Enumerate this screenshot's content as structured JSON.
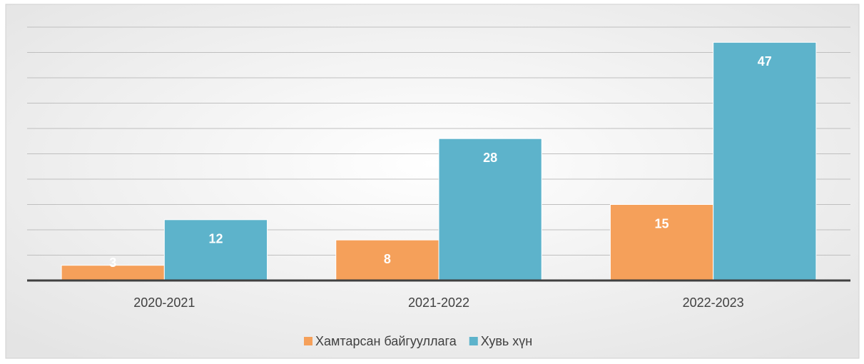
{
  "chart_data": {
    "type": "bar",
    "categories": [
      "2020-2021",
      "2021-2022",
      "2022-2023"
    ],
    "series": [
      {
        "name": "Хамтарсан байгууллага",
        "color": "#f5a05a",
        "values": [
          3,
          8,
          15
        ]
      },
      {
        "name": "Хувь хүн",
        "color": "#5db3cb",
        "values": [
          12,
          28,
          47
        ]
      }
    ],
    "ylim": [
      0,
      50
    ],
    "yticks": [
      0,
      5,
      10,
      15,
      20,
      25,
      30,
      35,
      40,
      45,
      50
    ],
    "grid": true,
    "legend": "bottom"
  }
}
